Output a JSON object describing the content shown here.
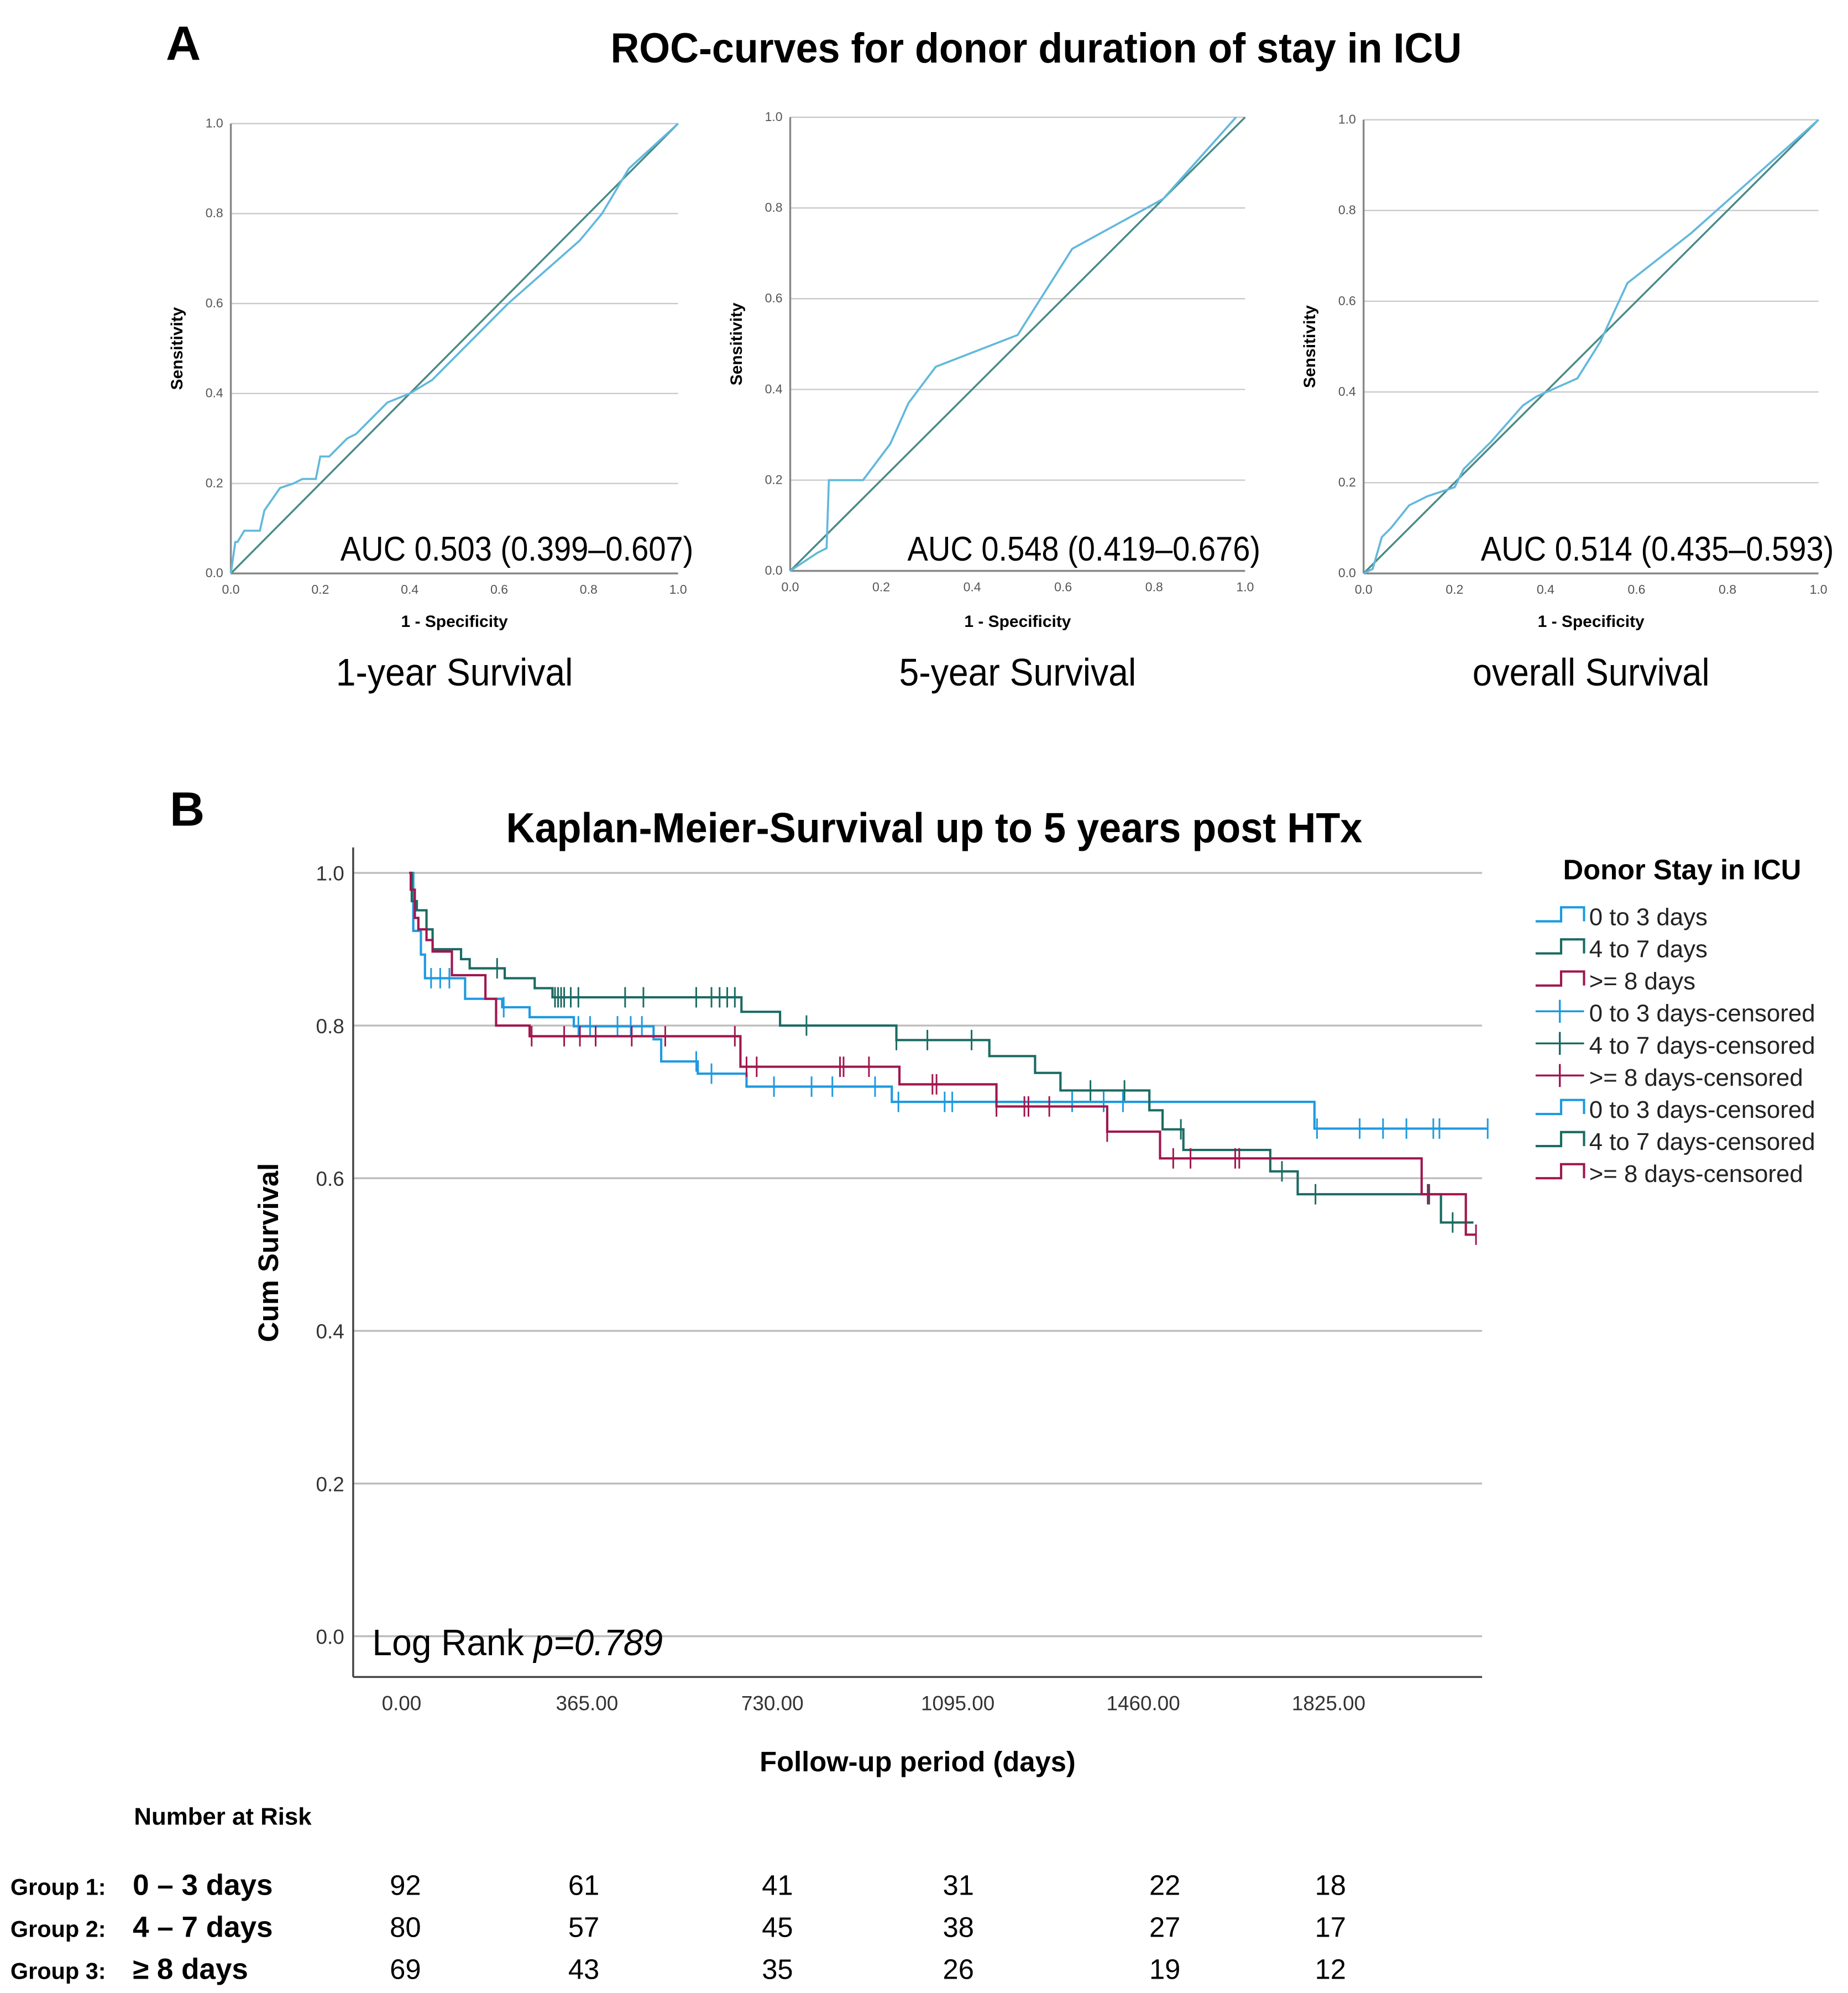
{
  "figure": {
    "panel_a_label": "A",
    "panel_a_title": "ROC-curves for donor duration of stay in ICU",
    "panel_b_label": "B"
  },
  "colors": {
    "group1": "#1f9ae0",
    "group2": "#1b6b63",
    "group3": "#a0174f",
    "roc_curve": "#62b8dc",
    "roc_diagonal": "#4a8a86",
    "grid": "#bdbdbd"
  },
  "chart_data": [
    {
      "type": "line",
      "subtitle": "1-year Survival",
      "xlabel": "1 - Specificity",
      "ylabel": "Sensitivity",
      "xlim": [
        0,
        1
      ],
      "ylim": [
        0,
        1
      ],
      "xticks": [
        "0.0",
        "0.2",
        "0.4",
        "0.6",
        "0.8",
        "1.0"
      ],
      "yticks": [
        "0.0",
        "0.2",
        "0.4",
        "0.6",
        "0.8",
        "1.0"
      ],
      "auc_label": "AUC 0.503 (0.399–0.607)",
      "auc": 0.503,
      "ci": [
        0.399,
        0.607
      ],
      "roc": [
        [
          0,
          0
        ],
        [
          0.01,
          0.07
        ],
        [
          0.015,
          0.07
        ],
        [
          0.03,
          0.095
        ],
        [
          0.065,
          0.095
        ],
        [
          0.075,
          0.14
        ],
        [
          0.11,
          0.19
        ],
        [
          0.14,
          0.2
        ],
        [
          0.16,
          0.21
        ],
        [
          0.19,
          0.21
        ],
        [
          0.2,
          0.26
        ],
        [
          0.22,
          0.26
        ],
        [
          0.26,
          0.3
        ],
        [
          0.28,
          0.31
        ],
        [
          0.35,
          0.38
        ],
        [
          0.4,
          0.4
        ],
        [
          0.45,
          0.43
        ],
        [
          0.62,
          0.6
        ],
        [
          0.78,
          0.74
        ],
        [
          0.83,
          0.8
        ],
        [
          0.89,
          0.9
        ],
        [
          1,
          1
        ]
      ]
    },
    {
      "type": "line",
      "subtitle": "5-year Survival",
      "xlabel": "1 - Specificity",
      "ylabel": "Sensitivity",
      "xlim": [
        0,
        1
      ],
      "ylim": [
        0,
        1
      ],
      "xticks": [
        "0.0",
        "0.2",
        "0.4",
        "0.6",
        "0.8",
        "1.0"
      ],
      "yticks": [
        "0.0",
        "0.2",
        "0.4",
        "0.6",
        "0.8",
        "1.0"
      ],
      "auc_label": "AUC 0.548 (0.419–0.676)",
      "auc": 0.548,
      "ci": [
        0.419,
        0.676
      ],
      "roc": [
        [
          0,
          0
        ],
        [
          0.06,
          0.04
        ],
        [
          0.08,
          0.05
        ],
        [
          0.085,
          0.2
        ],
        [
          0.16,
          0.2
        ],
        [
          0.22,
          0.28
        ],
        [
          0.26,
          0.37
        ],
        [
          0.32,
          0.45
        ],
        [
          0.5,
          0.52
        ],
        [
          0.62,
          0.71
        ],
        [
          0.82,
          0.82
        ],
        [
          0.98,
          1
        ]
      ]
    },
    {
      "type": "line",
      "subtitle": "overall Survival",
      "xlabel": "1 - Specificity",
      "ylabel": "Sensitivity",
      "xlim": [
        0,
        1
      ],
      "ylim": [
        0,
        1
      ],
      "xticks": [
        "0.0",
        "0.2",
        "0.4",
        "0.6",
        "0.8",
        "1.0"
      ],
      "yticks": [
        "0.0",
        "0.2",
        "0.4",
        "0.6",
        "0.8",
        "1.0"
      ],
      "auc_label": "AUC 0.514 (0.435–0.593)",
      "auc": 0.514,
      "ci": [
        0.435,
        0.593
      ],
      "roc": [
        [
          0,
          0
        ],
        [
          0.02,
          0.01
        ],
        [
          0.04,
          0.08
        ],
        [
          0.06,
          0.1
        ],
        [
          0.1,
          0.15
        ],
        [
          0.14,
          0.17
        ],
        [
          0.2,
          0.19
        ],
        [
          0.22,
          0.23
        ],
        [
          0.28,
          0.29
        ],
        [
          0.35,
          0.37
        ],
        [
          0.38,
          0.39
        ],
        [
          0.47,
          0.43
        ],
        [
          0.52,
          0.51
        ],
        [
          0.58,
          0.64
        ],
        [
          0.72,
          0.75
        ],
        [
          1,
          1
        ]
      ]
    },
    {
      "type": "line",
      "title": "Kaplan-Meier-Survival up to 5 years post HTx",
      "xlabel": "Follow-up period (days)",
      "ylabel": "Cum Survival",
      "xlim": [
        0,
        2112
      ],
      "ylim": [
        0,
        1
      ],
      "xticks": [
        {
          "v": 0,
          "label": "0.00"
        },
        {
          "v": 365,
          "label": "365.00"
        },
        {
          "v": 730,
          "label": "730.00"
        },
        {
          "v": 1095,
          "label": "1095.00"
        },
        {
          "v": 1460,
          "label": "1460.00"
        },
        {
          "v": 1825,
          "label": "1825.00"
        }
      ],
      "yticks": [
        {
          "v": 0,
          "label": "0.0"
        },
        {
          "v": 0.2,
          "label": "0.2"
        },
        {
          "v": 0.4,
          "label": "0.4"
        },
        {
          "v": 0.6,
          "label": "0.6"
        },
        {
          "v": 0.8,
          "label": "0.8"
        },
        {
          "v": 1.0,
          "label": "1.0"
        }
      ],
      "annotation": {
        "prefix": "Log Rank ",
        "p": "p=0.789"
      },
      "legend": {
        "title": "Donor Stay in ICU",
        "placement": "right",
        "entries": [
          {
            "label": "0 to 3 days",
            "kind": "step",
            "group": 0
          },
          {
            "label": "4 to 7 days",
            "kind": "step",
            "group": 1
          },
          {
            "label": ">= 8 days",
            "kind": "step",
            "group": 2
          },
          {
            "label": "0 to 3 days-censored",
            "kind": "cross",
            "group": 0
          },
          {
            "label": "4 to 7 days-censored",
            "kind": "cross",
            "group": 1
          },
          {
            "label": ">= 8 days-censored",
            "kind": "cross",
            "group": 2
          },
          {
            "label": "0 to 3 days-censored",
            "kind": "step",
            "group": 0
          },
          {
            "label": "4 to 7 days-censored",
            "kind": "step",
            "group": 1
          },
          {
            "label": ">= 8 days-censored",
            "kind": "step",
            "group": 2
          }
        ]
      },
      "series": [
        {
          "name": "0 to 3 days",
          "end": 2123,
          "steps": [
            [
              0,
              1
            ],
            [
              8,
              0.924
            ],
            [
              23,
              0.893
            ],
            [
              31,
              0.862
            ],
            [
              110,
              0.835
            ],
            [
              183,
              0.824
            ],
            [
              237,
              0.811
            ],
            [
              324,
              0.799
            ],
            [
              481,
              0.782
            ],
            [
              496,
              0.753
            ],
            [
              568,
              0.737
            ],
            [
              664,
              0.72
            ],
            [
              950,
              0.7
            ],
            [
              1782,
              0.665
            ]
          ],
          "censored": [
            43,
            61,
            79,
            186,
            333,
            356,
            410,
            436,
            458,
            565,
            595,
            718,
            792,
            833,
            917,
            963,
            1054,
            1069,
            1305,
            1367,
            1405,
            1787,
            1871,
            1917,
            1963,
            2016,
            2028,
            2123
          ]
        },
        {
          "name": "4 to 7 days",
          "end": 2095,
          "steps": [
            [
              0,
              1
            ],
            [
              5,
              0.963
            ],
            [
              15,
              0.951
            ],
            [
              34,
              0.926
            ],
            [
              46,
              0.9
            ],
            [
              102,
              0.887
            ],
            [
              119,
              0.875
            ],
            [
              188,
              0.862
            ],
            [
              247,
              0.849
            ],
            [
              282,
              0.837
            ],
            [
              654,
              0.818
            ],
            [
              730,
              0.8
            ],
            [
              959,
              0.781
            ],
            [
              1142,
              0.76
            ],
            [
              1232,
              0.738
            ],
            [
              1282,
              0.715
            ],
            [
              1457,
              0.689
            ],
            [
              1483,
              0.664
            ],
            [
              1524,
              0.637
            ],
            [
              1695,
              0.609
            ],
            [
              1749,
              0.579
            ],
            [
              2031,
              0.542
            ]
          ],
          "censored": [
            173,
            287,
            293,
            299,
            305,
            318,
            333,
            425,
            461,
            565,
            595,
            611,
            626,
            641,
            782,
            959,
            1020,
            1107,
            1341,
            1408,
            1519,
            1718,
            1784,
            2008,
            2054
          ]
        },
        {
          "name": ">= 8 days",
          "end": 2100,
          "steps": [
            [
              0,
              1
            ],
            [
              3,
              0.978
            ],
            [
              11,
              0.941
            ],
            [
              18,
              0.926
            ],
            [
              34,
              0.912
            ],
            [
              46,
              0.897
            ],
            [
              84,
              0.866
            ],
            [
              150,
              0.835
            ],
            [
              171,
              0.8
            ],
            [
              237,
              0.786
            ],
            [
              652,
              0.746
            ],
            [
              965,
              0.723
            ],
            [
              1156,
              0.694
            ],
            [
              1374,
              0.661
            ],
            [
              1478,
              0.626
            ],
            [
              1993,
              0.579
            ],
            [
              2080,
              0.526
            ]
          ],
          "censored": [
            241,
            305,
            336,
            367,
            438,
            504,
            641,
            664,
            684,
            848,
            855,
            905,
            1030,
            1038,
            1156,
            1211,
            1219,
            1260,
            1374,
            1504,
            1538,
            1626,
            1634,
            2005,
            2100
          ]
        }
      ],
      "number_at_risk": {
        "title": "Number at Risk",
        "rows": [
          {
            "group": "Group 1:",
            "label": "0 – 3 days",
            "values": [
              "92",
              "61",
              "41",
              "31",
              "22",
              "18"
            ]
          },
          {
            "group": "Group 2:",
            "label": "4 – 7 days",
            "values": [
              "80",
              "57",
              "45",
              "38",
              "27",
              "17"
            ]
          },
          {
            "group": "Group 3:",
            "label": "≥ 8 days",
            "values": [
              "69",
              "43",
              "35",
              "26",
              "19",
              "12"
            ]
          }
        ]
      }
    }
  ]
}
